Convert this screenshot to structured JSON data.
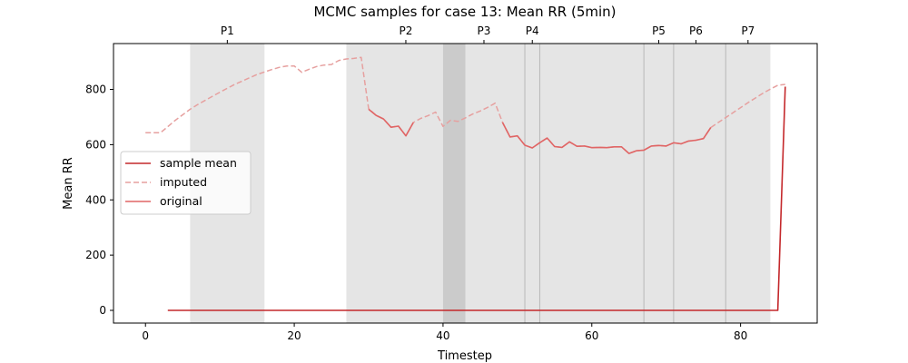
{
  "chart_data": {
    "type": "line",
    "title": "MCMC samples for case 13: Mean RR (5min)",
    "xlabel": "Timestep",
    "ylabel": "Mean RR",
    "xlim": [
      -4.3,
      90.3
    ],
    "ylim": [
      -46,
      966
    ],
    "xticks": [
      0,
      20,
      40,
      60,
      80
    ],
    "yticks": [
      0,
      200,
      400,
      600,
      800
    ],
    "legend": {
      "position": "center-left",
      "entries": [
        {
          "label": "sample mean",
          "style": "solid",
          "color": "#c4282b"
        },
        {
          "label": "imputed",
          "style": "dashed",
          "color": "#e6a09f"
        },
        {
          "label": "original",
          "style": "solid",
          "color": "#e06565"
        }
      ]
    },
    "phase_labels": [
      {
        "label": "P1",
        "x": 11
      },
      {
        "label": "P2",
        "x": 35
      },
      {
        "label": "P3",
        "x": 45.5
      },
      {
        "label": "P4",
        "x": 52
      },
      {
        "label": "P5",
        "x": 69
      },
      {
        "label": "P6",
        "x": 74
      },
      {
        "label": "P7",
        "x": 81
      }
    ],
    "shaded_regions": [
      {
        "x0": 6,
        "x1": 16,
        "shade": "light"
      },
      {
        "x0": 27,
        "x1": 84,
        "shade": "light"
      },
      {
        "x0": 40,
        "x1": 43,
        "shade": "dark"
      }
    ],
    "vlines": [
      51,
      53,
      67,
      71,
      78
    ],
    "series": [
      {
        "name": "imputed",
        "style": "dashed",
        "color": "#e6a09f",
        "x": [
          0,
          1,
          2,
          3,
          4,
          5,
          6,
          7,
          8,
          9,
          10,
          11,
          12,
          13,
          14,
          15,
          16,
          17,
          18,
          19,
          20,
          21,
          22,
          23,
          24,
          25,
          26,
          27,
          28,
          29,
          30,
          31,
          32,
          33,
          34,
          35,
          36,
          37,
          38,
          39,
          40,
          41,
          42,
          43,
          44,
          45,
          46,
          47,
          48,
          49,
          50,
          51,
          52,
          53,
          54,
          55,
          56,
          57,
          58,
          59,
          60,
          61,
          62,
          63,
          64,
          65,
          66,
          67,
          68,
          69,
          70,
          71,
          72,
          73,
          74,
          75,
          76,
          77,
          78,
          79,
          80,
          81,
          82,
          83,
          84,
          85,
          86
        ],
        "values": [
          643,
          643,
          643,
          665,
          688,
          708,
          728,
          745,
          760,
          775,
          790,
          804,
          818,
          830,
          842,
          854,
          863,
          872,
          880,
          885,
          885,
          862,
          873,
          883,
          888,
          890,
          905,
          910,
          912,
          916,
          730,
          706,
          693,
          663,
          667,
          632,
          680,
          695,
          705,
          718,
          666,
          688,
          684,
          697,
          711,
          722,
          735,
          750,
          680,
          628,
          632,
          598,
          588,
          607,
          624,
          593,
          590,
          610,
          594,
          595,
          589,
          590,
          589,
          592,
          592,
          568,
          578,
          580,
          595,
          597,
          595,
          607,
          603,
          613,
          616,
          622,
          662,
          680,
          698,
          716,
          734,
          752,
          769,
          786,
          801,
          815,
          818
        ]
      },
      {
        "name": "original",
        "style": "solid",
        "color": "#e06565",
        "x": [
          30,
          31,
          32,
          33,
          34,
          35,
          36,
          null,
          48,
          49,
          50,
          51,
          52,
          53,
          54,
          55,
          56,
          57,
          58,
          59,
          60,
          61,
          62,
          63,
          64,
          65,
          66,
          67,
          68,
          69,
          70,
          71,
          72,
          73,
          74,
          75,
          76,
          null,
          86
        ],
        "values": [
          728,
          706,
          693,
          663,
          667,
          632,
          680,
          null,
          680,
          628,
          632,
          598,
          588,
          607,
          624,
          593,
          590,
          610,
          594,
          595,
          589,
          590,
          589,
          592,
          592,
          568,
          578,
          580,
          595,
          597,
          595,
          607,
          603,
          613,
          616,
          622,
          662,
          null,
          885
        ]
      },
      {
        "name": "sample mean",
        "style": "solid",
        "color": "#c4282b",
        "x": [
          3,
          10,
          20,
          30,
          40,
          50,
          60,
          70,
          80,
          85,
          86
        ],
        "values": [
          0,
          0,
          0,
          0,
          0,
          0,
          0,
          0,
          0,
          0,
          810
        ]
      }
    ]
  }
}
